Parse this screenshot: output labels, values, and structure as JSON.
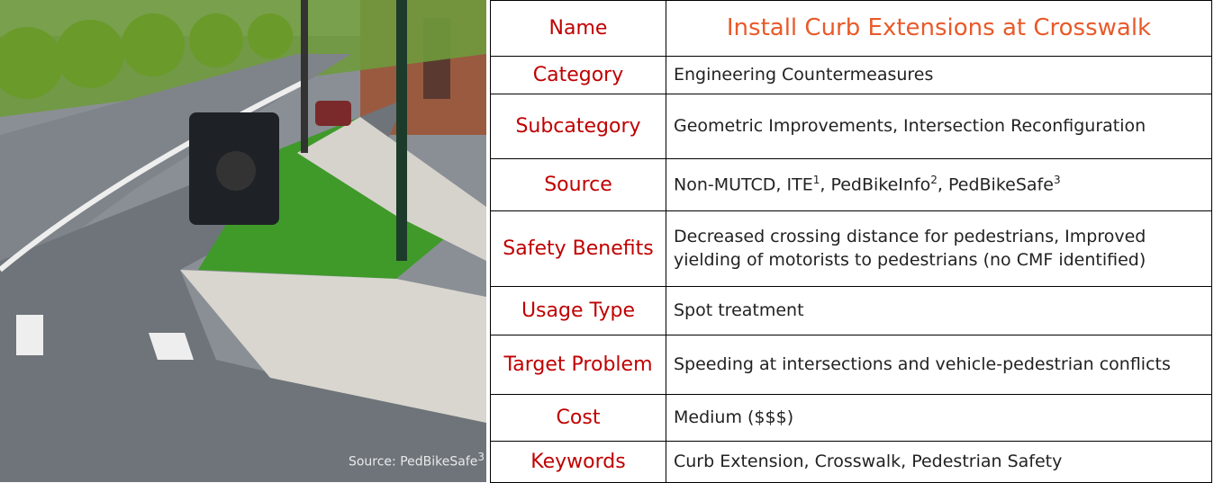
{
  "photo": {
    "caption": {
      "text": "Source: PedBikeSafe",
      "sup": "3"
    }
  },
  "table": {
    "rows": [
      {
        "label": "Name",
        "value": [
          {
            "text": "Install Curb Extensions at Crosswalk"
          }
        ]
      },
      {
        "label": "Category",
        "value": [
          {
            "text": "Engineering Countermeasures"
          }
        ]
      },
      {
        "label": "Subcategory",
        "value": [
          {
            "text": "Geometric Improvements, Intersection Reconfiguration"
          }
        ]
      },
      {
        "label": "Source",
        "value": [
          {
            "text": "Non-MUTCD, ITE",
            "sup": "1"
          },
          {
            "text": ", PedBikeInfo",
            "sup": "2"
          },
          {
            "text": ", PedBikeSafe",
            "sup": "3"
          }
        ]
      },
      {
        "label": "Safety Benefits",
        "value": [
          {
            "text": "Decreased crossing distance for pedestrians, Improved yielding of motorists to pedestrians (no CMF identified)"
          }
        ]
      },
      {
        "label": "Usage Type",
        "value": [
          {
            "text": "Spot treatment"
          }
        ]
      },
      {
        "label": "Target Problem",
        "value": [
          {
            "text": "Speeding at intersections and vehicle-pedestrian conflicts"
          }
        ]
      },
      {
        "label": "Cost",
        "value": [
          {
            "text": "Medium ($$$)"
          }
        ]
      },
      {
        "label": "Keywords",
        "value": [
          {
            "text": "Curb Extension, Crosswalk, Pedestrian Safety"
          }
        ]
      }
    ]
  }
}
